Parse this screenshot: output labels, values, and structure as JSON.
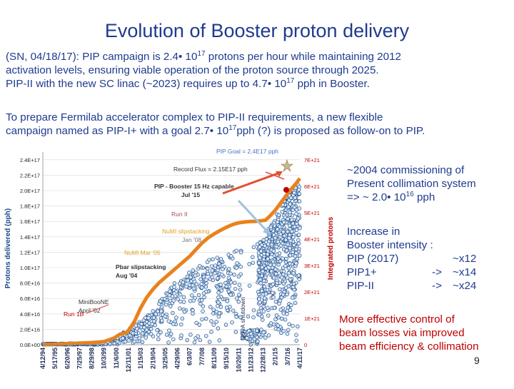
{
  "title": "Evolution of Booster proton delivery",
  "paragraph1": {
    "line1_pre": "(SN, 04/18/17): PIP campaign is 2.4",
    "line1_exp": "17",
    "line1_post": " protons per hour while maintaining 2012",
    "line2": "activation levels, ensuring viable operation of the proton source through 2025.",
    "line3_pre": "PIP-II with the new SC linac (~2023) requires up to 4.7",
    "line3_exp": "17",
    "line3_post": " pph in Booster."
  },
  "paragraph2": {
    "line1": "To prepare Fermilab accelerator complex to PIP-II requirements, a new flexible",
    "line2_pre": "campaign named as PIP-I+ with a goal 2.7",
    "line2_exp": "17",
    "line2_post": "pph (?) is proposed as follow-on to PIP."
  },
  "note_commissioning": {
    "line1": "~2004 commissioning of",
    "line2": "Present collimation system",
    "line3_pre": "=> ~ 2.0",
    "line3_exp": "16",
    "line3_post": " pph"
  },
  "note_intensity": {
    "line1": "Increase in",
    "line2": "Booster intensity :",
    "rows": [
      {
        "label": "PIP (2017)",
        "arrow": "",
        "value": "~x12"
      },
      {
        "label": "PIP1+",
        "arrow": "->",
        "value": "~x14"
      },
      {
        "label": "PIP-II",
        "arrow": "->",
        "value": "~x24"
      }
    ]
  },
  "note_losses": {
    "line1": "More effective control of",
    "line2": "beam losses via improved",
    "line3": "beam efficiency & collimation"
  },
  "page_number": "9",
  "colors": {
    "title": "#1f3b8f",
    "rate": "#1a4a8a",
    "integrated": "#e8821e",
    "integrated_axis": "#c00000",
    "loss_note": "#c00000"
  },
  "chart_data": {
    "type": "scatter",
    "ylabel_left": "Protons delivered (pph)",
    "ylabel_right": "Integrated protons",
    "left_ticks": [
      "0.0E+00",
      "2.0E+16",
      "4.0E+16",
      "6.0E+16",
      "8.0E+16",
      "1.0E+17",
      "1.2E+17",
      "1.4E+17",
      "1.6E+17",
      "1.8E+17",
      "2.0E+17",
      "2.2E+17",
      "2.4E+17"
    ],
    "right_ticks": [
      "0",
      "1E+21",
      "2E+21",
      "3E+21",
      "4E+21",
      "5E+21",
      "6E+21",
      "7E+21"
    ],
    "x_ticks": [
      "4/12/94",
      "5/17/95",
      "6/20/96",
      "7/25/97",
      "8/29/98",
      "10/3/99",
      "11/6/00",
      "12/11/01",
      "1/15/03",
      "2/19/04",
      "3/25/05",
      "4/29/06",
      "6/3/07",
      "7/7/08",
      "8/11/09",
      "9/15/10",
      "10/20/11",
      "11/23/12",
      "12/28/13",
      "2/1/15",
      "3/7/16",
      "4/11/17"
    ],
    "left_max": 2.5e+17,
    "right_max": 7.3e+21,
    "annotations": {
      "goal": "PIP Goal = 2.4E17 pph",
      "record": "Record Flux = 2.15E17 pph",
      "capable_line1": "PIP - Booster 15 Hz capable",
      "capable_line2": "Jul '15",
      "run2": "Run II",
      "numi_slip_line1": "NuMI slipstacking",
      "numi_slip_line2": "Jan '08",
      "numi_mar": "NuMI Mar '05",
      "pbar_line1": "Pbar slipstacking",
      "pbar_line2": "Aug '04",
      "miniboone_line1": "MiniBooNE",
      "miniboone_line2": "April '02",
      "run1b": "Run 1B",
      "nova": "NOvA shutdown"
    },
    "integrated_series": {
      "name": "Integrated protons",
      "x": [
        0,
        1,
        2,
        3,
        4,
        5,
        5.8,
        6.3,
        6.8,
        7.1,
        7.5,
        8,
        8.5,
        9,
        9.5,
        10,
        10.5,
        11,
        11.5,
        12,
        12.5,
        13,
        13.5,
        14,
        14.5,
        15,
        15.5,
        16,
        16.5,
        17,
        17.3,
        17.9,
        18.2,
        18.6,
        19,
        19.4,
        19.8,
        20.2,
        20.6,
        21
      ],
      "values": [
        0,
        2e+19,
        4e+19,
        6e+19,
        8e+19,
        1.2e+20,
        2.5e+20,
        4e+20,
        4.5e+20,
        6e+20,
        9e+20,
        1.4e+21,
        1.8e+21,
        2.1e+21,
        2.35e+21,
        2.55e+21,
        2.75e+21,
        2.95e+21,
        3.15e+21,
        3.35e+21,
        3.6e+21,
        3.85e+21,
        4.05e+21,
        4.2e+21,
        4.33e+21,
        4.45e+21,
        4.55e+21,
        4.62e+21,
        4.65e+21,
        4.67e+21,
        4.67e+21,
        4.7e+21,
        4.72e+21,
        4.9e+21,
        5.1e+21,
        5.35e+21,
        5.6e+21,
        5.85e+21,
        6.05e+21,
        6.3e+21
      ]
    },
    "rate_envelope": {
      "name": "Protons delivered (pph)",
      "x": [
        0,
        1,
        2,
        3,
        4,
        5,
        6,
        7,
        8,
        9,
        10,
        11,
        12,
        13,
        14,
        15,
        16,
        17,
        18,
        19,
        20,
        21
      ],
      "values": [
        1200000000000000.0,
        1400000000000000.0,
        1600000000000000.0,
        1800000000000000.0,
        2000000000000000.0,
        3000000000000000.0,
        1e+16,
        2e+16,
        3.2e+16,
        4.5e+16,
        6.5e+16,
        8.5e+16,
        9.5e+16,
        1.05e+17,
        1.15e+17,
        1.2e+17,
        1.25e+17,
        1.28e+17,
        1.35e+17,
        1.65e+17,
        2e+17,
        2.15e+17
      ]
    }
  }
}
